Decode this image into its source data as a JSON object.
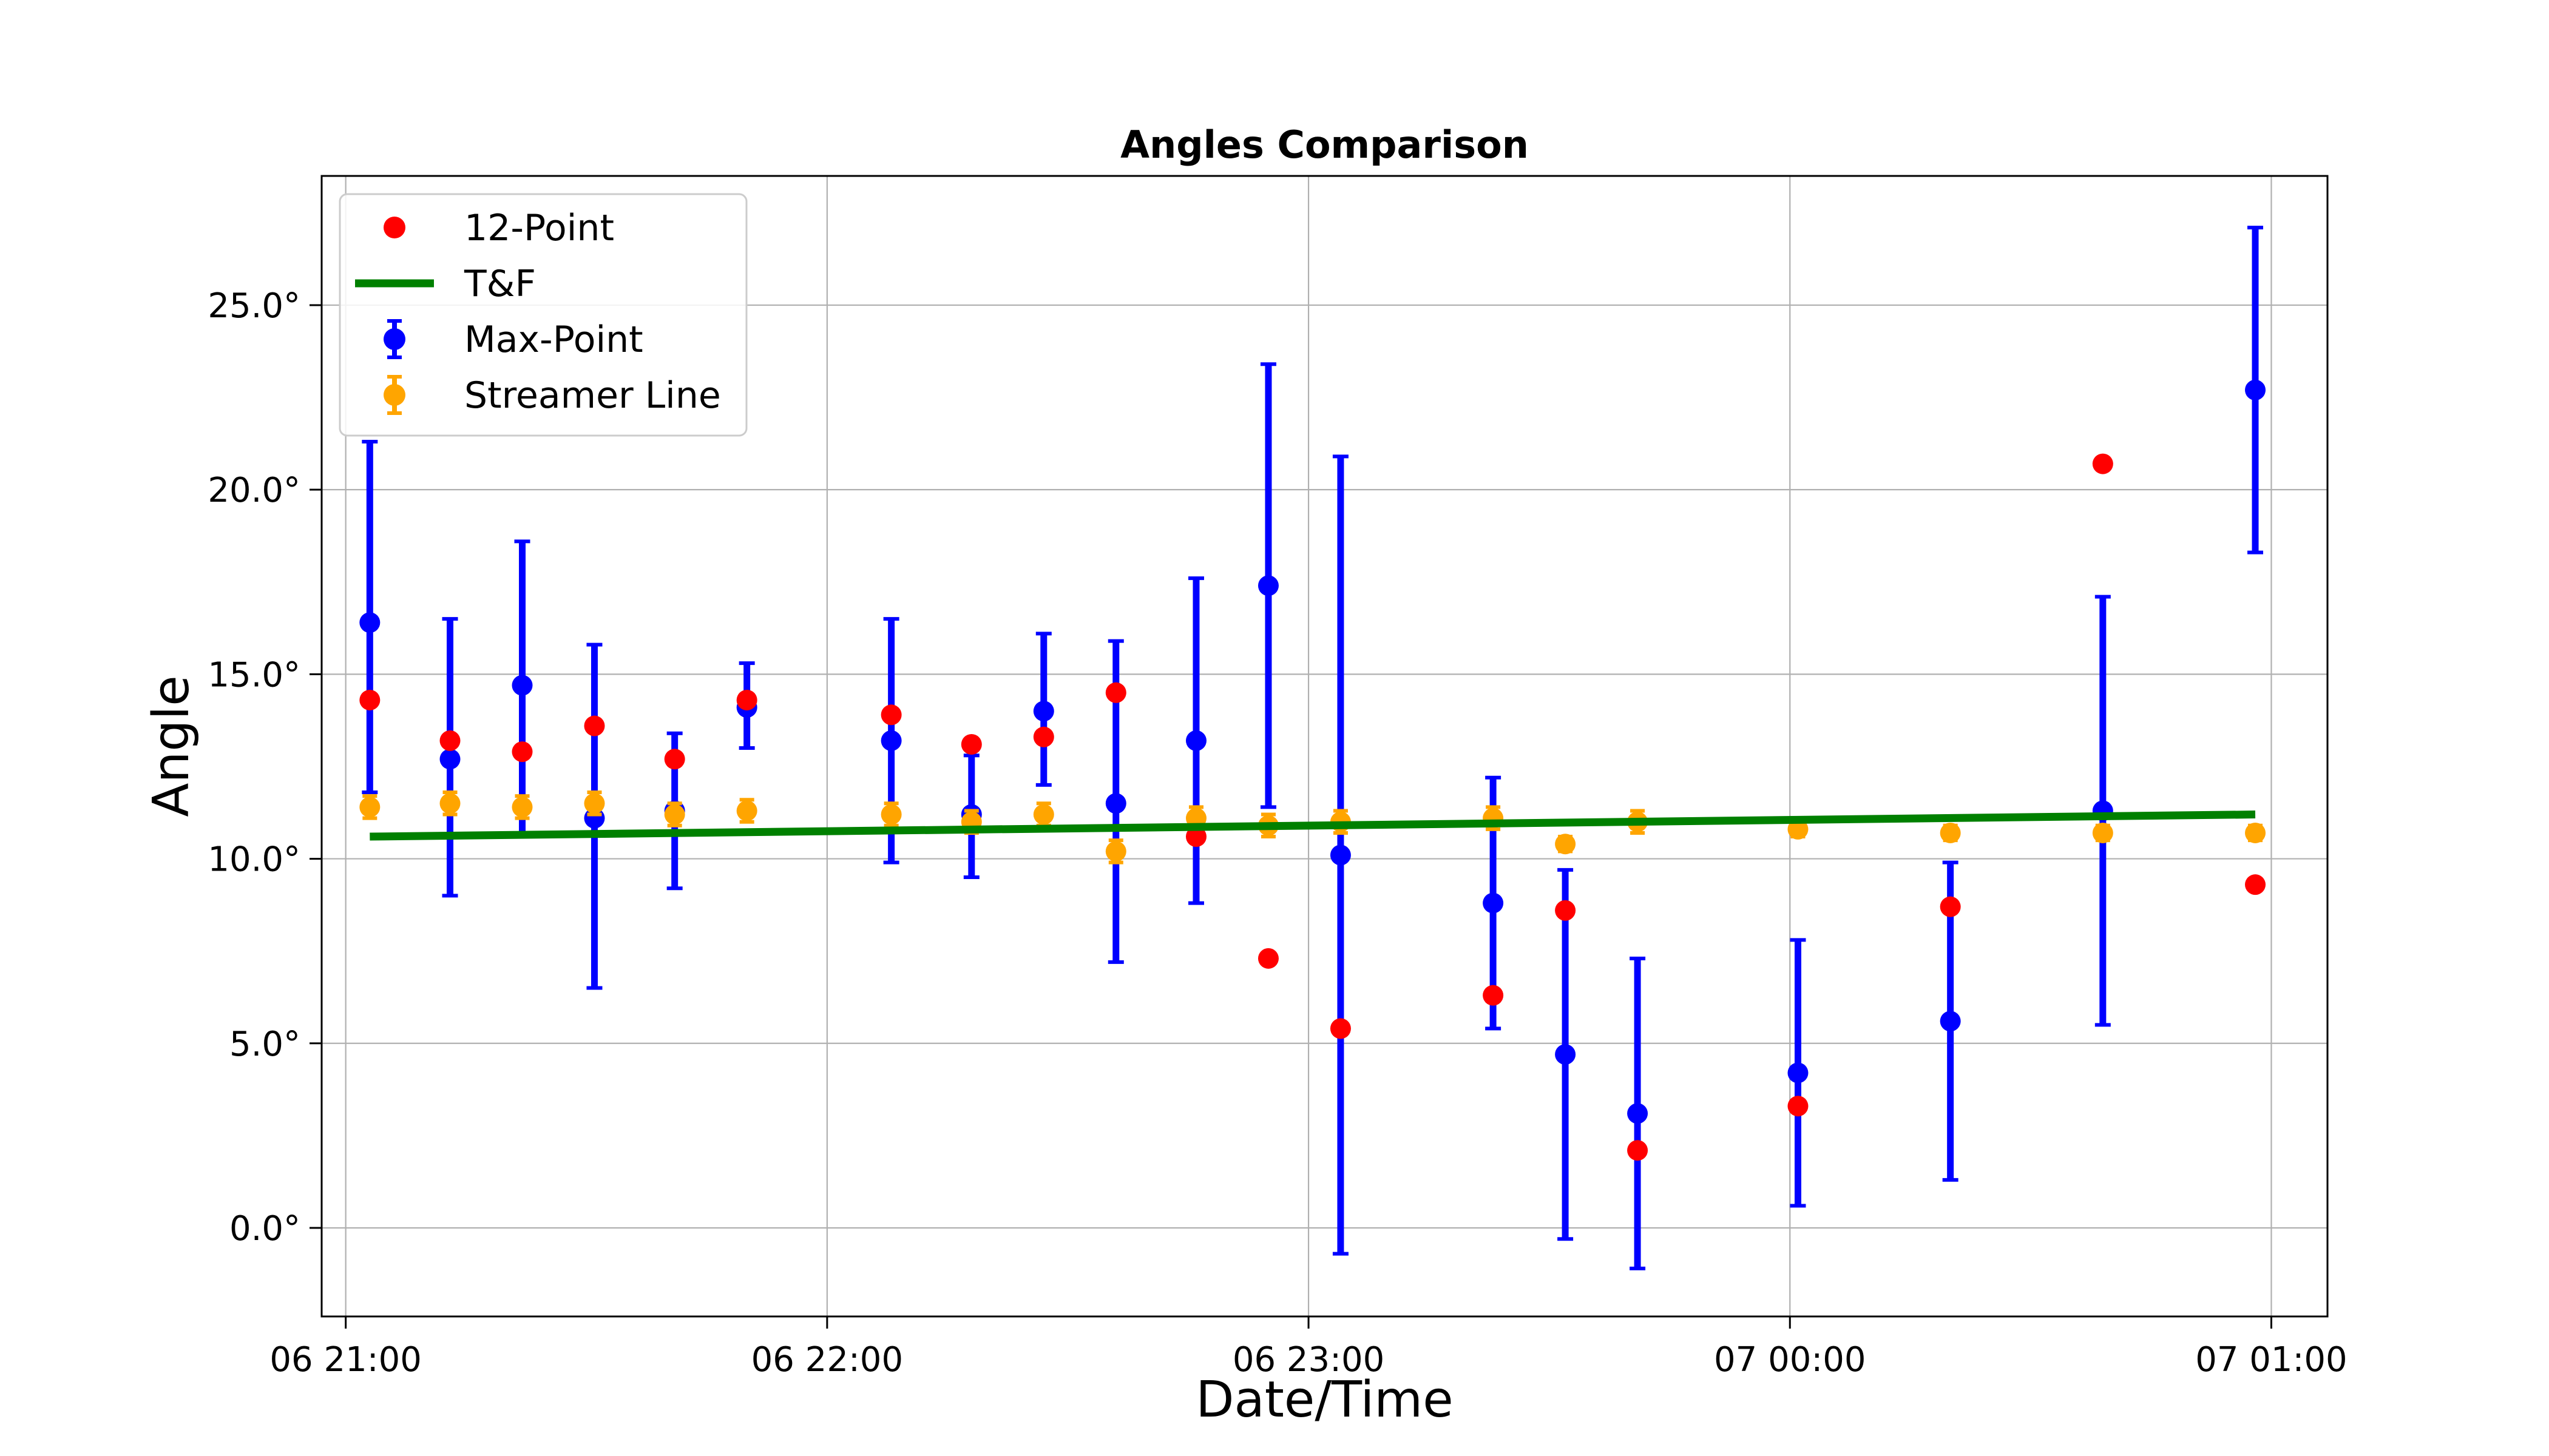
{
  "chart_data": {
    "type": "scatter",
    "title": "Angles Comparison",
    "xlabel": "Date/Time",
    "ylabel": "Angle",
    "x_axis_kind": "datetime",
    "xlim": [
      "06 20:57:00",
      "07 01:07:00"
    ],
    "ylim": [
      -2.4,
      28.5
    ],
    "x_ticks": [
      {
        "label": "06 21:00",
        "value": "06 21:00"
      },
      {
        "label": "06 22:00",
        "value": "06 22:00"
      },
      {
        "label": "06 23:00",
        "value": "06 23:00"
      },
      {
        "label": "07 00:00",
        "value": "07 00:00"
      },
      {
        "label": "07 01:00",
        "value": "07 01:00"
      }
    ],
    "y_ticks": [
      {
        "label": "0.0°",
        "value": 0
      },
      {
        "label": "5.0°",
        "value": 5
      },
      {
        "label": "10.0°",
        "value": 10
      },
      {
        "label": "15.0°",
        "value": 15
      },
      {
        "label": "20.0°",
        "value": 20
      },
      {
        "label": "25.0°",
        "value": 25
      }
    ],
    "grid": true,
    "legend_position": "top-left",
    "legend": [
      {
        "label": "12-Point",
        "kind": "marker",
        "color": "#ff0000"
      },
      {
        "label": "T&F",
        "kind": "line",
        "color": "#008000"
      },
      {
        "label": "Max-Point",
        "kind": "errorbar",
        "color": "#0000ff"
      },
      {
        "label": "Streamer Line",
        "kind": "errorbar",
        "color": "#ffa500"
      }
    ],
    "series": [
      {
        "name": "Max-Point",
        "kind": "errorbar",
        "color": "#0000ff",
        "points": [
          {
            "t": "06 21:03",
            "y": 16.4,
            "yerr_low": 4.6,
            "yerr_high": 4.9
          },
          {
            "t": "06 21:13",
            "y": 12.7,
            "yerr_low": 3.7,
            "yerr_high": 3.8
          },
          {
            "t": "06 21:22",
            "y": 14.7,
            "yerr_low": 4.0,
            "yerr_high": 3.9
          },
          {
            "t": "06 21:31",
            "y": 11.1,
            "yerr_low": 4.6,
            "yerr_high": 4.7
          },
          {
            "t": "06 21:41",
            "y": 11.3,
            "yerr_low": 2.1,
            "yerr_high": 2.1
          },
          {
            "t": "06 21:50",
            "y": 14.1,
            "yerr_low": 1.1,
            "yerr_high": 1.2
          },
          {
            "t": "06 22:08",
            "y": 13.2,
            "yerr_low": 3.3,
            "yerr_high": 3.3
          },
          {
            "t": "06 22:18",
            "y": 11.2,
            "yerr_low": 1.7,
            "yerr_high": 1.6
          },
          {
            "t": "06 22:27",
            "y": 14.0,
            "yerr_low": 2.0,
            "yerr_high": 2.1
          },
          {
            "t": "06 22:36",
            "y": 11.5,
            "yerr_low": 4.3,
            "yerr_high": 4.4
          },
          {
            "t": "06 22:46",
            "y": 13.2,
            "yerr_low": 4.4,
            "yerr_high": 4.4
          },
          {
            "t": "06 22:55",
            "y": 17.4,
            "yerr_low": 6.0,
            "yerr_high": 6.0
          },
          {
            "t": "06 23:04",
            "y": 10.1,
            "yerr_low": 10.8,
            "yerr_high": 10.8
          },
          {
            "t": "06 23:23",
            "y": 8.8,
            "yerr_low": 3.4,
            "yerr_high": 3.4
          },
          {
            "t": "06 23:32",
            "y": 4.7,
            "yerr_low": 5.0,
            "yerr_high": 5.0
          },
          {
            "t": "06 23:41",
            "y": 3.1,
            "yerr_low": 4.2,
            "yerr_high": 4.2
          },
          {
            "t": "07 00:01",
            "y": 4.2,
            "yerr_low": 3.6,
            "yerr_high": 3.6
          },
          {
            "t": "07 00:20",
            "y": 5.6,
            "yerr_low": 4.3,
            "yerr_high": 4.3
          },
          {
            "t": "07 00:39",
            "y": 11.3,
            "yerr_low": 5.8,
            "yerr_high": 5.8
          },
          {
            "t": "07 00:58",
            "y": 22.7,
            "yerr_low": 4.4,
            "yerr_high": 4.4
          }
        ]
      },
      {
        "name": "Streamer Line",
        "kind": "errorbar",
        "color": "#ffa500",
        "points": [
          {
            "t": "06 21:03",
            "y": 11.4,
            "yerr_low": 0.3,
            "yerr_high": 0.3
          },
          {
            "t": "06 21:13",
            "y": 11.5,
            "yerr_low": 0.3,
            "yerr_high": 0.3
          },
          {
            "t": "06 21:22",
            "y": 11.4,
            "yerr_low": 0.3,
            "yerr_high": 0.3
          },
          {
            "t": "06 21:31",
            "y": 11.5,
            "yerr_low": 0.3,
            "yerr_high": 0.3
          },
          {
            "t": "06 21:41",
            "y": 11.2,
            "yerr_low": 0.3,
            "yerr_high": 0.3
          },
          {
            "t": "06 21:50",
            "y": 11.3,
            "yerr_low": 0.3,
            "yerr_high": 0.3
          },
          {
            "t": "06 22:08",
            "y": 11.2,
            "yerr_low": 0.3,
            "yerr_high": 0.3
          },
          {
            "t": "06 22:18",
            "y": 11.0,
            "yerr_low": 0.3,
            "yerr_high": 0.3
          },
          {
            "t": "06 22:27",
            "y": 11.2,
            "yerr_low": 0.3,
            "yerr_high": 0.3
          },
          {
            "t": "06 22:36",
            "y": 10.2,
            "yerr_low": 0.3,
            "yerr_high": 0.3
          },
          {
            "t": "06 22:46",
            "y": 11.1,
            "yerr_low": 0.3,
            "yerr_high": 0.3
          },
          {
            "t": "06 22:55",
            "y": 10.9,
            "yerr_low": 0.3,
            "yerr_high": 0.3
          },
          {
            "t": "06 23:04",
            "y": 11.0,
            "yerr_low": 0.3,
            "yerr_high": 0.3
          },
          {
            "t": "06 23:23",
            "y": 11.1,
            "yerr_low": 0.3,
            "yerr_high": 0.3
          },
          {
            "t": "06 23:32",
            "y": 10.4,
            "yerr_low": 0.2,
            "yerr_high": 0.2
          },
          {
            "t": "06 23:41",
            "y": 11.0,
            "yerr_low": 0.3,
            "yerr_high": 0.3
          },
          {
            "t": "07 00:01",
            "y": 10.8,
            "yerr_low": 0.2,
            "yerr_high": 0.2
          },
          {
            "t": "07 00:20",
            "y": 10.7,
            "yerr_low": 0.2,
            "yerr_high": 0.2
          },
          {
            "t": "07 00:39",
            "y": 10.7,
            "yerr_low": 0.2,
            "yerr_high": 0.2
          },
          {
            "t": "07 00:58",
            "y": 10.7,
            "yerr_low": 0.2,
            "yerr_high": 0.2
          }
        ]
      },
      {
        "name": "12-Point",
        "kind": "scatter",
        "color": "#ff0000",
        "points": [
          {
            "t": "06 21:03",
            "y": 14.3
          },
          {
            "t": "06 21:13",
            "y": 13.2
          },
          {
            "t": "06 21:22",
            "y": 12.9
          },
          {
            "t": "06 21:31",
            "y": 13.6
          },
          {
            "t": "06 21:41",
            "y": 12.7
          },
          {
            "t": "06 21:50",
            "y": 14.3
          },
          {
            "t": "06 22:08",
            "y": 13.9
          },
          {
            "t": "06 22:18",
            "y": 13.1
          },
          {
            "t": "06 22:27",
            "y": 13.3
          },
          {
            "t": "06 22:36",
            "y": 14.5
          },
          {
            "t": "06 22:46",
            "y": 10.6
          },
          {
            "t": "06 22:55",
            "y": 7.3
          },
          {
            "t": "06 23:04",
            "y": 5.4
          },
          {
            "t": "06 23:23",
            "y": 6.3
          },
          {
            "t": "06 23:32",
            "y": 8.6
          },
          {
            "t": "06 23:41",
            "y": 2.1
          },
          {
            "t": "07 00:01",
            "y": 3.3
          },
          {
            "t": "07 00:20",
            "y": 8.7
          },
          {
            "t": "07 00:39",
            "y": 20.7
          },
          {
            "t": "07 00:58",
            "y": 9.3
          }
        ]
      },
      {
        "name": "T&F",
        "kind": "line",
        "color": "#008000",
        "points": [
          {
            "t": "06 21:03",
            "y": 10.6
          },
          {
            "t": "07 00:58",
            "y": 11.2
          }
        ]
      }
    ]
  }
}
